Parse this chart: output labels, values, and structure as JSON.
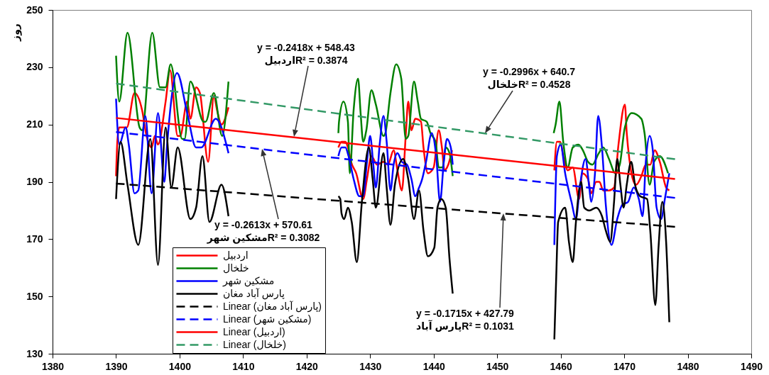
{
  "chart_data": {
    "type": "line",
    "ylabel": "روز",
    "xlim": [
      1380,
      1490
    ],
    "xticks": [
      1380,
      1390,
      1400,
      1410,
      1420,
      1430,
      1440,
      1450,
      1460,
      1470,
      1480,
      1490
    ],
    "ylim": [
      130,
      250
    ],
    "yticks": [
      130,
      150,
      170,
      190,
      210,
      230,
      250
    ],
    "legend": "bottom left",
    "series": [
      {
        "name": "اردبیل",
        "color": "#ff0000",
        "x": [
          1390,
          1390.2,
          1390.5,
          1391.7,
          1392.9,
          1394.1,
          1394.8,
          1395.6,
          1396.1,
          1396.6,
          1397.8,
          1398.5,
          1399.7,
          1400.1,
          1401.2,
          1401.7,
          1402.6,
          1403.2,
          1404.5,
          1405.4,
          1405.9,
          1406.6,
          1407.7,
          1416,
          1425,
          1425.5,
          1426.1,
          1426.5,
          1427,
          1427.8,
          1428.9,
          1429.5,
          1430.2,
          1431.1,
          1432.1,
          1432.8,
          1433.7,
          1434.3,
          1435,
          1435.6,
          1436,
          1436.5,
          1437.1,
          1438,
          1438.4,
          1439.1,
          1440,
          1440.8,
          1441.3,
          1441.7,
          1442.3,
          1442.9,
          1451,
          1459,
          1459.4,
          1459.9,
          1460.5,
          1461.1,
          1461.9,
          1462.9,
          1463.4,
          1464.3,
          1464.8,
          1465.6,
          1466.1,
          1466.7,
          1467.6,
          1468.4,
          1469.1,
          1470.1,
          1470.4,
          1470.8,
          1471.5,
          1471.9,
          1472.7,
          1473.4,
          1474.1,
          1474.8,
          1475.6,
          1476.6,
          1477.1
        ],
        "values": [
          192,
          204,
          209,
          209,
          221,
          215,
          206,
          202,
          206,
          203,
          218,
          229,
          206,
          206,
          218,
          212,
          223,
          221,
          197,
          220,
          215,
          210,
          216,
          null,
          202,
          204,
          204,
          202,
          197,
          193,
          184,
          191,
          199,
          196,
          197,
          196,
          201,
          194,
          187,
          206,
          218,
          208,
          212,
          211,
          202,
          193,
          195,
          208,
          202,
          194,
          196,
          201,
          null,
          194,
          204,
          204,
          198,
          194,
          195,
          184,
          193,
          191,
          186,
          190,
          190,
          187,
          187,
          188,
          203,
          217,
          207,
          198,
          190,
          189,
          192,
          196,
          196,
          201,
          197,
          188,
          187
        ]
      },
      {
        "name": "خلخال",
        "color": "#008000",
        "x": [
          1390,
          1390.5,
          1391.8,
          1393.7,
          1394.1,
          1395.7,
          1396.9,
          1397.8,
          1398.6,
          1400.4,
          1400.8,
          1401.7,
          1403.8,
          1404.1,
          1405.4,
          1406.7,
          1407.7,
          1416,
          1425,
          1425.1,
          1425.8,
          1426.5,
          1426.8,
          1427.4,
          1428.1,
          1428.5,
          1428.9,
          1429.4,
          1430.2,
          1430.9,
          1432.1,
          1432.4,
          1433.2,
          1434.1,
          1434.9,
          1435.6,
          1436,
          1436.9,
          1437.5,
          1438,
          1438.9,
          1439.5,
          1440.3,
          1440.8,
          1441.4,
          1441.9,
          1442.5,
          1443,
          1451,
          1458.9,
          1459.2,
          1459.8,
          1460.4,
          1461.1,
          1461.9,
          1462.8,
          1463.5,
          1464.3,
          1465,
          1466,
          1466.7,
          1467.6,
          1468.6,
          1469.3,
          1470.1,
          1471.2,
          1472.7,
          1473.2,
          1474,
          1474.7,
          1475.6,
          1476.9
        ],
        "values": [
          234,
          218,
          242,
          209,
          208,
          242,
          223,
          223,
          231,
          205,
          205,
          225,
          211,
          211,
          221,
          206,
          225,
          null,
          207,
          211,
          218,
          211,
          193,
          215,
          226,
          214,
          204,
          208,
          222,
          217,
          206,
          207,
          221,
          231,
          226,
          205,
          206,
          225,
          218,
          212,
          211,
          207,
          204,
          195,
          195,
          202,
          200,
          192,
          null,
          207,
          210,
          218,
          204,
          195,
          202,
          203,
          201,
          197,
          196,
          200,
          202,
          198,
          193,
          196,
          209,
          214,
          212,
          207,
          189,
          197,
          199,
          193
        ]
      },
      {
        "name": "مشکین شهر",
        "color": "#0000ff",
        "x": [
          1390,
          1390.5,
          1391.5,
          1392,
          1392.9,
          1393.5,
          1394.6,
          1395.6,
          1396.6,
          1397.6,
          1398,
          1399.6,
          1401.2,
          1402.6,
          1403.4,
          1405.7,
          1407.7,
          1416,
          1425,
          1425.5,
          1426.1,
          1426.6,
          1427.4,
          1428.3,
          1428.9,
          1429.5,
          1430,
          1430.5,
          1430.9,
          1431.5,
          1432.1,
          1432.6,
          1433.2,
          1433.7,
          1434.3,
          1435,
          1435.8,
          1436.5,
          1437.1,
          1437.7,
          1438.2,
          1438.8,
          1439.7,
          1440.4,
          1441,
          1441.6,
          1442.1,
          1442.7,
          1443,
          1451,
          1459,
          1459.4,
          1460,
          1460.7,
          1461.7,
          1462.4,
          1463,
          1463.9,
          1464.5,
          1464.8,
          1465.4,
          1465.9,
          1466.5,
          1467.1,
          1468,
          1468.9,
          1469.7,
          1470.6,
          1471.5,
          1472.3,
          1472.9,
          1473.4,
          1474,
          1474.5,
          1475.1,
          1475.8,
          1476.4,
          1477.1
        ],
        "values": [
          219,
          203,
          209,
          203,
          186,
          187,
          213,
          186,
          214,
          190,
          202,
          228,
          214,
          202,
          202,
          212,
          200,
          null,
          199,
          202,
          202,
          199,
          191,
          185,
          185,
          197,
          206,
          196,
          188,
          203,
          213,
          204,
          187,
          196,
          200,
          197,
          196,
          191,
          185,
          188,
          191,
          197,
          207,
          199,
          183,
          197,
          205,
          202,
          196,
          null,
          168,
          199,
          203,
          193,
          183,
          177,
          188,
          198,
          188,
          183,
          193,
          213,
          202,
          182,
          168,
          177,
          182,
          183,
          188,
          184,
          178,
          197,
          206,
          201,
          181,
          177,
          184,
          193
        ]
      },
      {
        "name": "پارس آباد مغان",
        "color": "#000000",
        "x": [
          1390,
          1390.7,
          1391.8,
          1393.5,
          1395.4,
          1396.6,
          1397.8,
          1398.7,
          1399.7,
          1401.7,
          1402.6,
          1403.6,
          1404.7,
          1406.6,
          1407.7,
          1416,
          1425,
          1425.3,
          1425.5,
          1425.9,
          1426.5,
          1427.1,
          1427.9,
          1428.7,
          1429.8,
          1430.4,
          1430.9,
          1432.1,
          1432.6,
          1433.2,
          1433.9,
          1435.2,
          1436,
          1436.9,
          1437.7,
          1438.4,
          1439.1,
          1440.1,
          1440.6,
          1441.2,
          1441.9,
          1442.5,
          1443,
          1451,
          1459,
          1459.3,
          1459.6,
          1460.7,
          1461.3,
          1461.9,
          1462.4,
          1463.2,
          1463.7,
          1464.5,
          1465.6,
          1466.5,
          1467.1,
          1467.8,
          1468.4,
          1468.9,
          1469.4,
          1469.9,
          1470.4,
          1471.1,
          1471.7,
          1472.5,
          1473.6,
          1474.1,
          1474.9,
          1475.4,
          1476,
          1476.6,
          1477.1
        ],
        "values": [
          184,
          204,
          189,
          168,
          205,
          161,
          209,
          188,
          202,
          177,
          181,
          199,
          176,
          189,
          178,
          null,
          185,
          184,
          179,
          177,
          181,
          176,
          162,
          183,
          202,
          191,
          181,
          200,
          188,
          175,
          189,
          198,
          191,
          177,
          187,
          173,
          164,
          167,
          181,
          184,
          181,
          163,
          151,
          null,
          135,
          157,
          176,
          181,
          169,
          162,
          176,
          190,
          181,
          180,
          181,
          178,
          173,
          169,
          183,
          198,
          189,
          181,
          189,
          197,
          189,
          185,
          184,
          173,
          147,
          167,
          183,
          169,
          141
        ]
      },
      {
        "name": "Linear (پارس آباد مغان)",
        "type": "line",
        "color": "#000000",
        "line_style": "dashed",
        "x": [
          1390,
          1478
        ],
        "values": [
          189.4,
          174.3
        ]
      },
      {
        "name": "Linear (مشکین شهر)",
        "type": "line",
        "color": "#0000ff",
        "line_style": "dashed",
        "x": [
          1390,
          1478
        ],
        "values": [
          207.4,
          184.4
        ]
      },
      {
        "name": "Linear (اردبیل)",
        "type": "line",
        "color": "#ff0000",
        "line_style": "solid",
        "x": [
          1390,
          1478
        ],
        "values": [
          212.3,
          191.0
        ]
      },
      {
        "name": "Linear (خلخال)",
        "type": "line",
        "color": "#339966",
        "line_style": "dashed",
        "x": [
          1390,
          1478
        ],
        "values": [
          224.3,
          197.9
        ]
      }
    ],
    "annotations": [
      "y = -0.2418x + 548.43\nاردبیلR² = 0.3874",
      "y = -0.2996x + 640.7\nخلخالR² = 0.4528",
      "y = -0.2613x + 570.61\nمشکین شهرR² = 0.3082",
      "y = -0.1715x + 427.79\nپارس آبادR² = 0.1031"
    ]
  }
}
